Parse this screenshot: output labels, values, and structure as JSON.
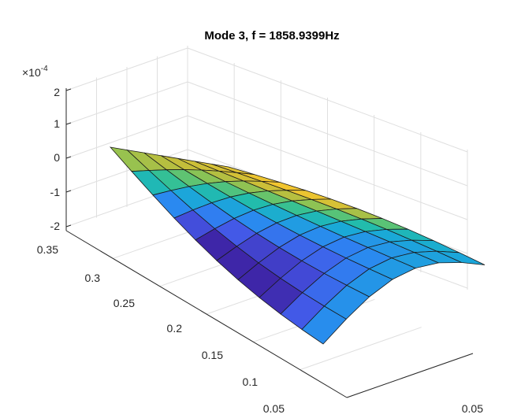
{
  "chart_data": {
    "type": "surface",
    "title": "Mode 3, f = 1858.9399Hz",
    "z_multiplier_label": {
      "base": "×10",
      "exponent": "-4"
    },
    "xlabel": "",
    "ylabel": "",
    "zlabel": "",
    "z_ticks": [
      "2",
      "1",
      "0",
      "-1",
      "-2"
    ],
    "z_tick_values": [
      2,
      1,
      0,
      -1,
      -2
    ],
    "y_ticks": [
      "0.35",
      "0.3",
      "0.25",
      "0.2",
      "0.15",
      "0.1",
      "0.05"
    ],
    "x_ticks": [
      "0.05"
    ],
    "zlim": [
      -2,
      2
    ],
    "grid": true,
    "colormap": "parula",
    "surface_grid": {
      "rows": 11,
      "cols": 8
    },
    "colormap_stops": [
      "#3e26a8",
      "#4456e6",
      "#2c86f2",
      "#1aa9d8",
      "#23bfa4",
      "#73c561",
      "#c3be3a",
      "#f2c52f",
      "#f9e91f"
    ]
  }
}
